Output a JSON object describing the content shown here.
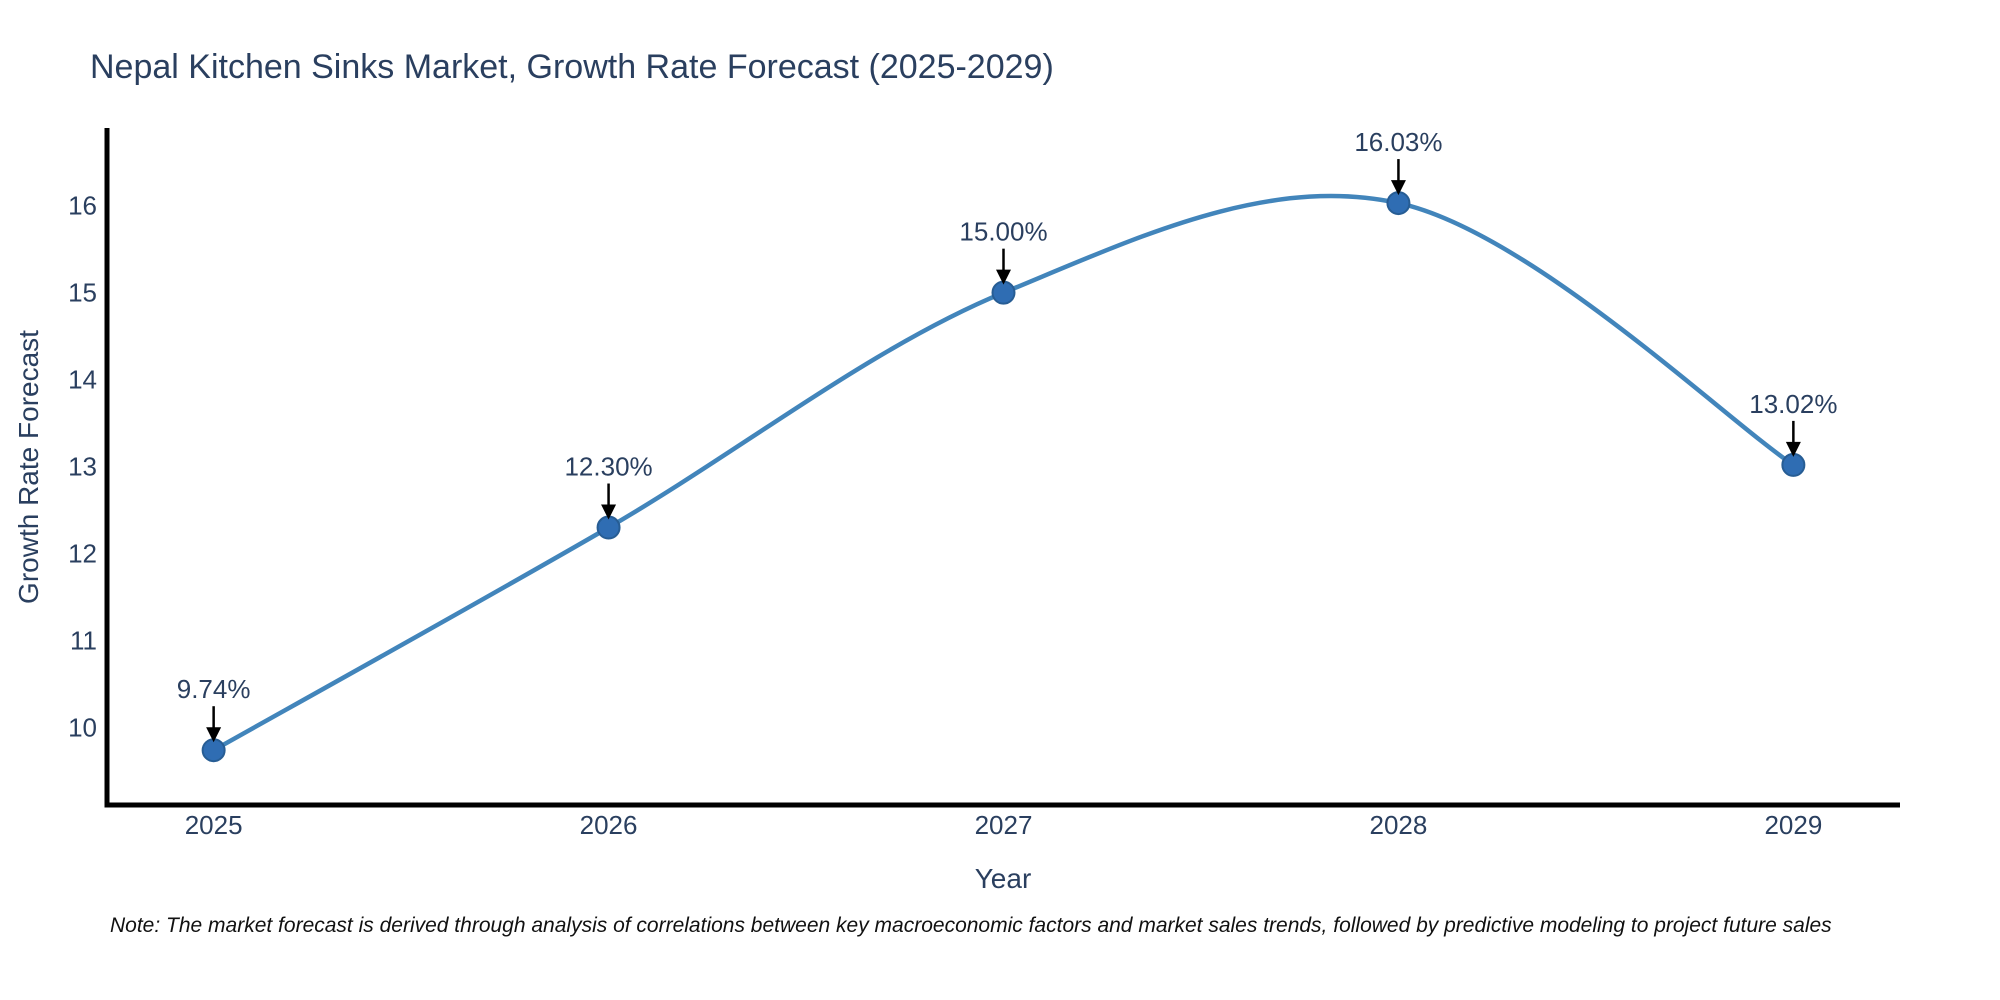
{
  "title": "Nepal Kitchen Sinks Market, Growth Rate Forecast (2025-2029)",
  "note": {
    "text": "Note: The market forecast is derived through analysis of correlations between key macroeconomic factors and market sales trends, followed by predictive modeling to project future sales"
  },
  "chart_data": {
    "type": "line",
    "title": "Nepal Kitchen Sinks Market, Growth Rate Forecast (2025-2029)",
    "xlabel": "Year",
    "ylabel": "Growth Rate Forecast",
    "x": [
      2025,
      2026,
      2027,
      2028,
      2029
    ],
    "values": [
      9.74,
      12.3,
      15.0,
      16.03,
      13.02
    ],
    "point_labels": [
      "9.74%",
      "12.30%",
      "15.00%",
      "16.03%",
      "13.02%"
    ],
    "xticks": [
      2025,
      2026,
      2027,
      2028,
      2029
    ],
    "yticks": [
      10,
      11,
      12,
      13,
      14,
      15,
      16
    ],
    "xlim": [
      2024.73,
      2029.27
    ],
    "ylim": [
      9.11,
      16.87
    ],
    "grid": false,
    "line_shape": "spline",
    "legend": "none",
    "colors": {
      "line": "#4285bb",
      "marker_fill": "#2f6db3",
      "marker_edge": "#275d94",
      "arrow": "#000000",
      "text": "#2a3f5f",
      "axis": "#000000",
      "background": "#ffffff"
    }
  }
}
